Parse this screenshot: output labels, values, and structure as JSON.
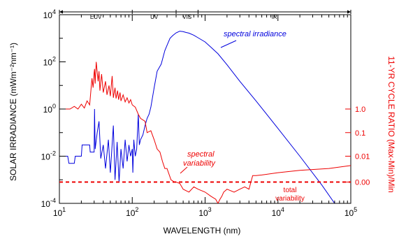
{
  "chart_data": {
    "type": "line",
    "xlabel": "WAVELENGTH (nm)",
    "ylabel": "SOLAR IRRADIANCE (mWm⁻²nm⁻¹)",
    "y2label": "11-YR CYCLE RATIO (Max-Min)/Min",
    "xscale": "log",
    "yscale": "log",
    "xlim": [
      10,
      100000
    ],
    "ylim": [
      0.0001,
      10000
    ],
    "x_ticks": [
      {
        "value": 10,
        "base": "10",
        "exp": "1"
      },
      {
        "value": 100,
        "base": "10",
        "exp": "2"
      },
      {
        "value": 1000,
        "base": "10",
        "exp": "3"
      },
      {
        "value": 10000,
        "base": "10",
        "exp": "4"
      },
      {
        "value": 100000,
        "base": "10",
        "exp": "5"
      }
    ],
    "y_ticks": [
      {
        "value": 10000,
        "base": "10",
        "exp": "4"
      },
      {
        "value": 100,
        "base": "10",
        "exp": "2"
      },
      {
        "value": 1,
        "base": "10",
        "exp": "0"
      },
      {
        "value": 0.01,
        "base": "10",
        "exp": "-2"
      },
      {
        "value": 0.0001,
        "base": "10",
        "exp": "-4"
      }
    ],
    "y2_ticks": [
      {
        "label": "1.0",
        "at_left": 1
      },
      {
        "label": "0.1",
        "at_left": 0.1
      },
      {
        "label": "0.01",
        "at_left": 0.01
      },
      {
        "label": "0.00",
        "at_left": 0.0008
      }
    ],
    "regions": [
      {
        "label": "EUV",
        "from": 10,
        "to": 100
      },
      {
        "label": "UV",
        "from": 100,
        "to": 400
      },
      {
        "label": "VIS",
        "from": 400,
        "to": 800
      },
      {
        "label": "IR",
        "from": 800,
        "to": 100000
      }
    ],
    "series": [
      {
        "name": "spectral irradiance",
        "color": "#0000dd",
        "x": [
          10,
          13,
          13.5,
          16,
          16.5,
          20,
          20.5,
          26,
          26.5,
          30,
          30.4,
          31,
          33,
          35,
          37,
          40,
          43,
          47,
          50,
          55,
          58,
          62,
          66,
          70,
          75,
          80,
          85,
          90,
          95,
          100,
          102,
          105,
          110,
          115,
          121,
          125,
          130,
          140,
          150,
          160,
          170,
          180,
          200,
          220,
          250,
          280,
          300,
          330,
          360,
          400,
          450,
          500,
          550,
          600,
          700,
          800,
          1000,
          1200,
          1500,
          2000,
          3000,
          5000,
          10000,
          20000,
          40000,
          60000
        ],
        "y": [
          0.01,
          0.01,
          0.005,
          0.005,
          0.01,
          0.01,
          0.03,
          0.03,
          0.015,
          0.015,
          1.0,
          0.02,
          0.1,
          0.3,
          0.008,
          0.03,
          0.003,
          0.05,
          0.002,
          0.2,
          0.001,
          0.04,
          0.0008,
          0.02,
          0.003,
          0.05,
          0.006,
          0.03,
          0.01,
          0.02,
          0.002,
          0.05,
          0.01,
          0.02,
          0.6,
          0.03,
          0.05,
          0.08,
          0.2,
          0.4,
          0.6,
          1.2,
          8,
          40,
          80,
          300,
          500,
          1000,
          1300,
          1700,
          2000,
          1900,
          1750,
          1650,
          1350,
          1050,
          700,
          420,
          220,
          75,
          15,
          2.2,
          0.15,
          0.01,
          0.0006,
          0.0001
        ]
      },
      {
        "name": "spectral variability",
        "color": "#ee0000",
        "x": [
          10,
          14,
          16,
          18,
          20,
          22,
          24,
          26,
          28,
          29,
          30,
          30.4,
          31,
          32,
          34,
          35,
          36,
          38,
          40,
          43,
          45,
          48,
          50,
          53,
          55,
          58,
          60,
          63,
          65,
          68,
          70,
          75,
          80,
          85,
          90,
          95,
          100,
          110,
          121,
          130,
          150,
          160,
          180,
          200,
          220,
          240,
          260,
          280,
          300,
          340,
          380,
          400,
          450,
          500,
          600,
          700,
          800,
          1000,
          1200,
          1400,
          1500,
          1600,
          1700,
          1800,
          2000,
          2500,
          3000,
          3500,
          4000,
          4500,
          5000,
          6000,
          10000,
          20000,
          50000,
          100000
        ],
        "y": [
          1.0,
          1.0,
          1.3,
          1.0,
          1.6,
          1.1,
          2.2,
          1.5,
          20,
          8,
          35,
          50,
          12,
          100,
          15,
          40,
          6,
          30,
          5,
          15,
          4,
          10,
          3.5,
          25,
          3,
          8,
          2.8,
          6,
          2.5,
          5,
          2.2,
          4,
          2,
          3,
          1.8,
          2.5,
          1.5,
          1.2,
          0.6,
          0.4,
          0.3,
          0.1,
          0.12,
          0.05,
          0.02,
          0.015,
          0.006,
          0.003,
          0.003,
          0.001,
          0.0008,
          0.0008,
          0.0007,
          0.0004,
          0.0003,
          0.0005,
          0.0004,
          0.0003,
          0.0002,
          0.00015,
          0.0001,
          0.00015,
          0.0002,
          0.0003,
          0.0004,
          0.0003,
          0.0004,
          0.0005,
          0.0004,
          0.0015,
          0.0015,
          0.0016,
          0.002,
          0.0025,
          0.003,
          0.004
        ]
      },
      {
        "name": "total variability",
        "color": "#ee0000",
        "dash": true,
        "x": [
          10,
          100000
        ],
        "y": [
          0.0008,
          0.0008
        ]
      }
    ],
    "annotations": [
      {
        "text": "spectral irradiance",
        "color": "#0000dd"
      },
      {
        "text": "spectral",
        "color": "#ee0000"
      },
      {
        "text": "variability",
        "color": "#ee0000"
      },
      {
        "text": "total",
        "color": "#ee0000"
      },
      {
        "text": "variability",
        "color": "#ee0000"
      }
    ]
  }
}
